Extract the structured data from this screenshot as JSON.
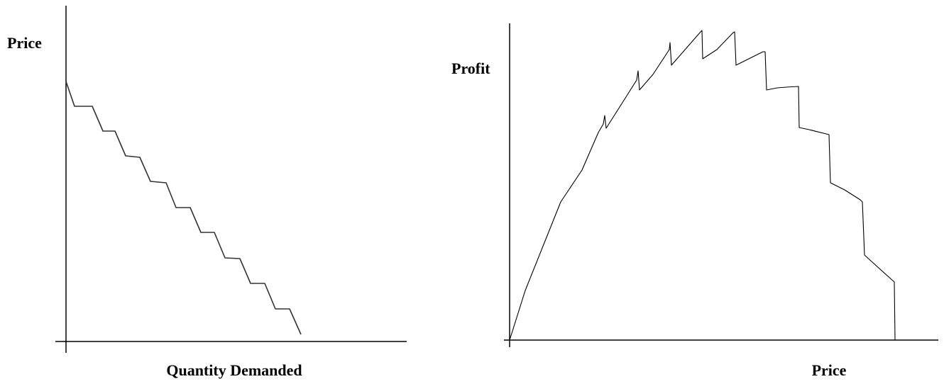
{
  "left_diagram": {
    "y_axis_label": "Price",
    "x_axis_label": "Quantity Demanded"
  },
  "right_diagram": {
    "y_axis_label": "Profit",
    "x_axis_label": "Price"
  }
}
